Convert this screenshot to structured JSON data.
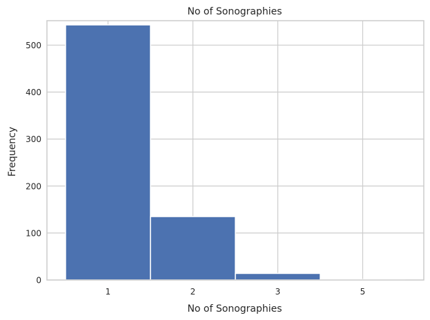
{
  "chart_data": {
    "type": "bar",
    "title": "No of Sonographies",
    "xlabel": "No of Sonographies",
    "ylabel": "Frequency",
    "categories": [
      "1",
      "2",
      "3",
      "5"
    ],
    "values": [
      543,
      135,
      14,
      1
    ],
    "ylim": [
      0,
      552
    ],
    "yticks": [
      0,
      100,
      200,
      300,
      400,
      500
    ],
    "grid": true,
    "bar_color": "#4c72b0",
    "grid_color": "#cccccc",
    "spine_color": "#cccccc"
  }
}
